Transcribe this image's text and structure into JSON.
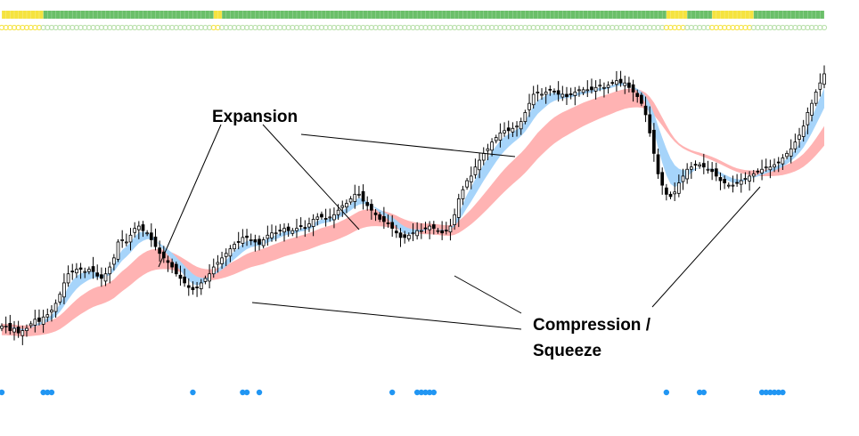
{
  "chart_data": {
    "type": "candlestick",
    "title": "",
    "xlabel": "",
    "ylabel": "",
    "grid": false,
    "ylim": [
      0,
      100
    ],
    "annotations": [
      {
        "text": "Expansion",
        "points_to": [
          "wave-1-high",
          "wave-2-high",
          "wave-3-breakout"
        ]
      },
      {
        "text_lines": [
          "Compression /",
          "Squeeze"
        ],
        "points_to": [
          "wave-1-pullback",
          "wave-3-base",
          "wave-4-base"
        ]
      }
    ],
    "colors": {
      "up_candle_fill": "#ffffff",
      "down_candle_fill": "#000000",
      "candle_outline": "#000000",
      "fast_band": "#a6d4fa",
      "slow_band": "#ffb3b3",
      "squeeze_dot": "#2196f3",
      "status_green": "#6abf69",
      "status_yellow": "#f5e33f",
      "status_circle_green": "#b7dfa8"
    },
    "top_status_bar": [
      {
        "color": "yellow",
        "start": 0,
        "end": 10
      },
      {
        "color": "green",
        "start": 10,
        "end": 51
      },
      {
        "color": "yellow",
        "start": 51,
        "end": 53
      },
      {
        "color": "green",
        "start": 53,
        "end": 160
      },
      {
        "color": "yellow",
        "start": 160,
        "end": 165
      },
      {
        "color": "green",
        "start": 165,
        "end": 171
      },
      {
        "color": "yellow",
        "start": 171,
        "end": 181
      },
      {
        "color": "green",
        "start": 181,
        "end": 199
      }
    ],
    "squeeze_dots_bar": [
      0,
      10,
      11,
      12,
      46,
      58,
      59,
      62,
      94,
      100,
      101,
      102,
      103,
      104,
      160,
      168,
      169,
      183,
      184,
      185,
      186,
      187,
      188
    ],
    "candles": {
      "count": 199,
      "close": [
        10,
        10,
        8,
        9,
        7,
        8,
        9,
        11,
        13,
        12,
        14,
        15,
        17,
        20,
        24,
        29,
        33,
        34,
        35,
        35,
        34,
        35,
        34,
        32,
        31,
        33,
        36,
        40,
        47,
        48,
        47,
        50,
        53,
        54,
        52,
        51,
        48,
        45,
        42,
        40,
        38,
        36,
        33,
        31,
        29,
        27,
        26,
        27,
        29,
        31,
        33,
        36,
        38,
        40,
        42,
        44,
        46,
        47,
        49,
        49,
        48,
        47,
        46,
        48,
        50,
        51,
        51,
        52,
        53,
        52,
        52,
        53,
        54,
        53,
        55,
        57,
        58,
        58,
        57,
        58,
        59,
        61,
        63,
        64,
        66,
        68,
        68,
        65,
        63,
        61,
        59,
        57,
        56,
        55,
        53,
        51,
        49,
        49,
        50,
        51,
        52,
        52,
        53,
        54,
        53,
        52,
        51,
        52,
        54,
        59,
        66,
        70,
        74,
        76,
        80,
        83,
        86,
        88,
        91,
        93,
        95,
        96,
        96,
        97,
        98,
        100,
        104,
        108,
        112,
        113,
        112,
        113,
        114,
        113,
        112,
        112,
        111,
        112,
        113,
        114,
        114,
        114,
        114,
        115,
        116,
        115,
        116,
        117,
        118,
        117,
        117,
        115,
        113,
        111,
        108,
        103,
        95,
        86,
        77,
        72,
        68,
        67,
        69,
        73,
        76,
        79,
        80,
        81,
        81,
        80,
        79,
        78,
        76,
        74,
        73,
        72,
        72,
        73,
        74,
        75,
        76,
        77,
        78,
        79,
        80,
        80,
        81,
        82,
        84,
        86,
        88,
        91,
        94,
        98,
        104,
        108,
        113,
        117,
        121
      ],
      "max_close": 121
    },
    "fast_band_note": "light blue band between fast moving averages",
    "slow_band_note": "pink band between slow moving averages"
  }
}
